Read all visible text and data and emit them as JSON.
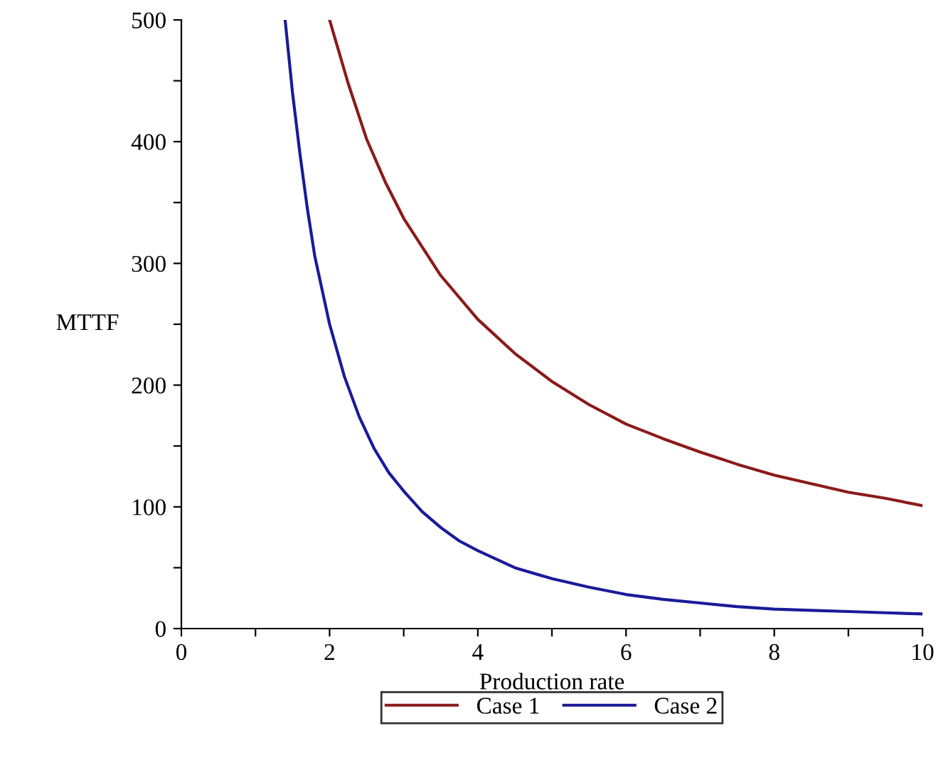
{
  "chart_data": {
    "type": "line",
    "xlabel": "Production rate",
    "ylabel": "MTTF",
    "xlim": [
      0,
      10
    ],
    "ylim": [
      0,
      500
    ],
    "xticks": [
      0,
      {
        "value": 1,
        "label": null
      },
      2,
      {
        "value": 3,
        "label": null
      },
      4,
      {
        "value": 5,
        "label": null
      },
      6,
      {
        "value": 7,
        "label": null
      },
      8,
      {
        "value": 9,
        "label": null
      },
      10
    ],
    "yticks": [
      0,
      {
        "value": 50,
        "label": null
      },
      100,
      {
        "value": 150,
        "label": null
      },
      200,
      {
        "value": 250,
        "label": null
      },
      300,
      {
        "value": 350,
        "label": null
      },
      400,
      {
        "value": 450,
        "label": null
      },
      500
    ],
    "grid": false,
    "legend": "bottom",
    "line_style": "solid",
    "marker": "none",
    "series": [
      {
        "name": "Case 1",
        "color": "#8b1a1a",
        "x": [
          2,
          2.25,
          2.5,
          2.75,
          3,
          3.5,
          4,
          4.5,
          5,
          5.5,
          6,
          6.5,
          7,
          7.5,
          8,
          8.5,
          9,
          9.5,
          10
        ],
        "values": [
          500,
          448,
          402,
          367,
          337,
          290,
          254,
          226,
          203,
          184,
          168,
          156,
          145,
          135,
          126,
          119,
          112,
          107,
          101
        ]
      },
      {
        "name": "Case 2",
        "color": "#1a1a9a",
        "x": [
          1.4,
          1.5,
          1.6,
          1.7,
          1.8,
          2,
          2.2,
          2.4,
          2.6,
          2.8,
          3,
          3.25,
          3.5,
          3.75,
          4,
          4.5,
          5,
          5.5,
          6,
          6.5,
          7,
          7.5,
          8,
          8.5,
          9,
          9.5,
          10
        ],
        "values": [
          500,
          440,
          390,
          345,
          306,
          250,
          207,
          174,
          148,
          128,
          113,
          96,
          83,
          72,
          64,
          50,
          41,
          34,
          28,
          24,
          21,
          18,
          16,
          15,
          14,
          13,
          12
        ]
      }
    ]
  }
}
